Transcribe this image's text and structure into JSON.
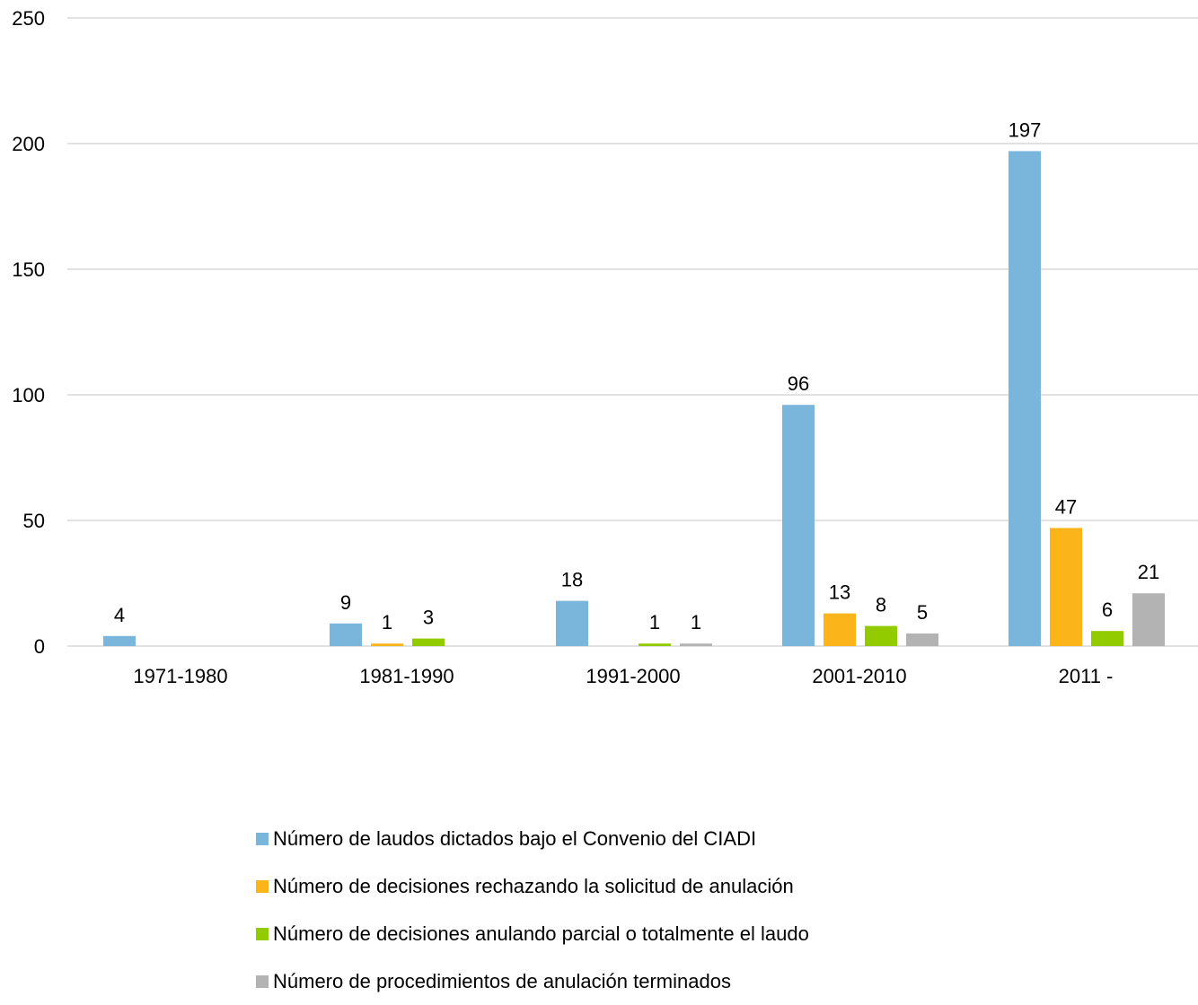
{
  "chart_data": {
    "type": "bar",
    "title": "",
    "xlabel": "",
    "ylabel": "",
    "ylim": [
      0,
      250
    ],
    "yticks": [
      0,
      50,
      100,
      150,
      200,
      250
    ],
    "grid": true,
    "legend_position": "bottom",
    "categories": [
      "1971-1980",
      "1981-1990",
      "1991-2000",
      "2001-2010",
      "2011 -"
    ],
    "series": [
      {
        "name": "Número de laudos dictados bajo el Convenio del CIADI",
        "color": "#7ab6dc",
        "values": [
          4,
          9,
          18,
          96,
          197
        ],
        "labels": [
          "4",
          "9",
          "18",
          "96",
          "197"
        ]
      },
      {
        "name": "Número de decisiones rechazando la solicitud de anulación",
        "color": "#fbb51b",
        "values": [
          0,
          1,
          0,
          13,
          47
        ],
        "labels": [
          "",
          "1",
          "",
          "13",
          "47"
        ]
      },
      {
        "name": "Número de decisiones anulando parcial o totalmente el laudo",
        "color": "#92cb00",
        "values": [
          0,
          3,
          1,
          8,
          6
        ],
        "labels": [
          "",
          "3",
          "1",
          "8",
          "6"
        ]
      },
      {
        "name": "Número de procedimientos de anulación terminados",
        "color": "#b3b3b3",
        "values": [
          0,
          0,
          1,
          5,
          21
        ],
        "labels": [
          "",
          "",
          "1",
          "5",
          "21"
        ]
      }
    ],
    "gridline_color": "#d9d9d9"
  }
}
